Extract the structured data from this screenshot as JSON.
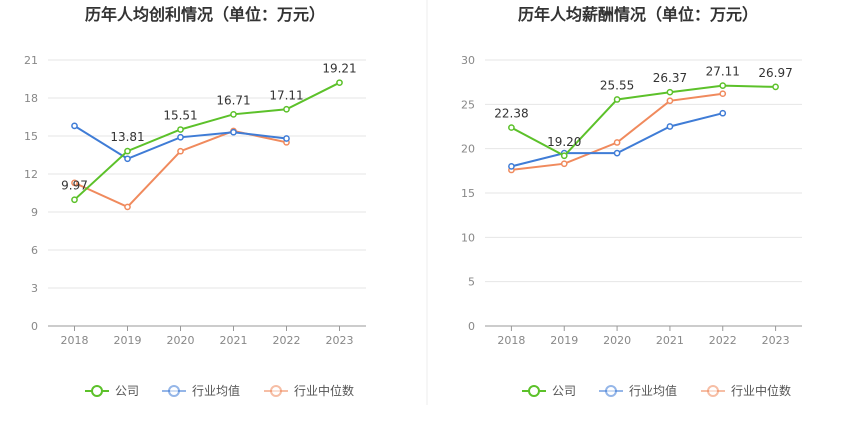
{
  "chart_data": [
    {
      "type": "line",
      "title": "历年人均创利情况（单位：万元）",
      "categories": [
        "2018",
        "2019",
        "2020",
        "2021",
        "2022",
        "2023"
      ],
      "ylim": [
        0,
        21
      ],
      "yticks": [
        0,
        3,
        6,
        9,
        12,
        15,
        18,
        21
      ],
      "grid": true,
      "legend_position": "bottom-center",
      "series": [
        {
          "name": "公司",
          "color": "#5cc12a",
          "values": [
            9.97,
            13.81,
            15.51,
            16.71,
            17.11,
            19.21
          ],
          "labels": [
            "9.97",
            "13.81",
            "15.51",
            "16.71",
            "17.11",
            "19.21"
          ]
        },
        {
          "name": "行业均值",
          "color": "#3f7cd6",
          "values": [
            15.8,
            13.2,
            14.9,
            15.3,
            14.8,
            null
          ]
        },
        {
          "name": "行业中位数",
          "color": "#f08a5d",
          "values": [
            11.3,
            9.4,
            13.8,
            15.4,
            14.5,
            null
          ]
        }
      ]
    },
    {
      "type": "line",
      "title": "历年人均薪酬情况（单位：万元）",
      "categories": [
        "2018",
        "2019",
        "2020",
        "2021",
        "2022",
        "2023"
      ],
      "ylim": [
        0,
        30
      ],
      "yticks": [
        0,
        5,
        10,
        15,
        20,
        25,
        30
      ],
      "grid": true,
      "legend_position": "bottom-center",
      "series": [
        {
          "name": "公司",
          "color": "#5cc12a",
          "values": [
            22.38,
            19.2,
            25.55,
            26.37,
            27.11,
            26.97
          ],
          "labels": [
            "22.38",
            "19.20",
            "25.55",
            "26.37",
            "27.11",
            "26.97"
          ]
        },
        {
          "name": "行业均值",
          "color": "#3f7cd6",
          "values": [
            18.0,
            19.5,
            19.5,
            22.5,
            24.0,
            null
          ]
        },
        {
          "name": "行业中位数",
          "color": "#f08a5d",
          "values": [
            17.6,
            18.3,
            20.7,
            25.4,
            26.2,
            null
          ]
        }
      ]
    }
  ]
}
